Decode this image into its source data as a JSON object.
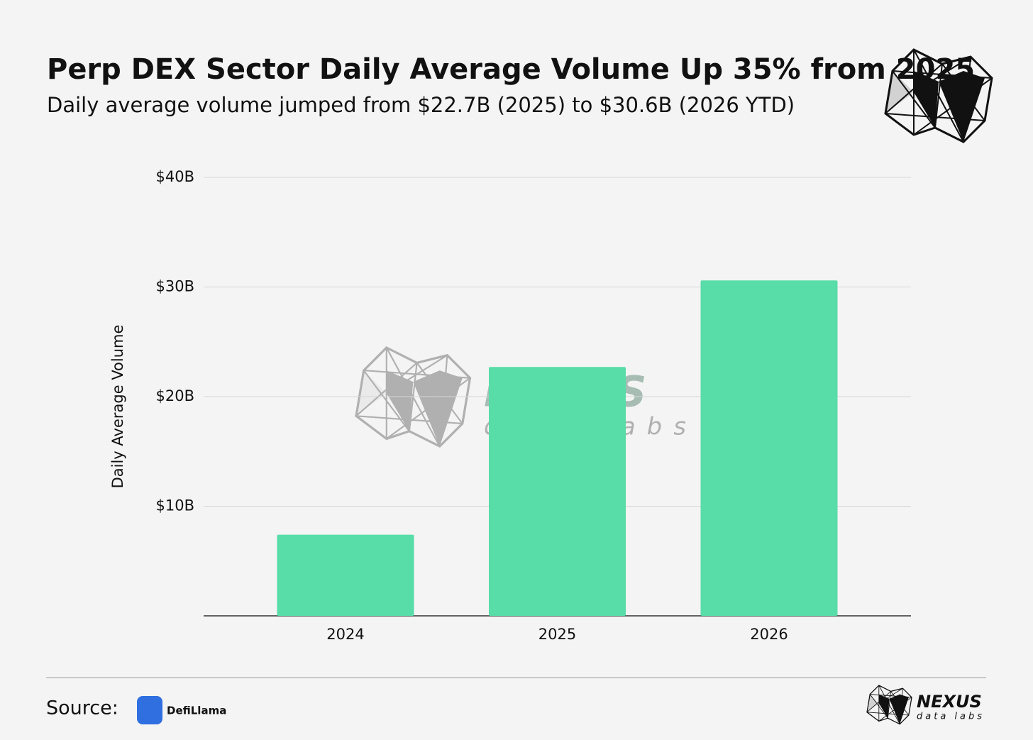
{
  "chart_data": {
    "type": "bar",
    "title": "Perp DEX Sector Daily Average Volume Up 35% from 2025",
    "subtitle": "Daily average volume jumped from $22.7B (2025) to $30.6B (2026 YTD)",
    "y_label": "Daily Average Volume",
    "categories": [
      "2024",
      "2025",
      "2026"
    ],
    "values": [
      7.4,
      22.7,
      30.6
    ],
    "color": "#58dca8",
    "ylim": [
      0,
      40
    ],
    "yticks": [
      {
        "value": 10,
        "label": "$10B"
      },
      {
        "value": 20,
        "label": "$20B"
      },
      {
        "value": 30,
        "label": "$30B"
      },
      {
        "value": 40,
        "label": "$40B"
      }
    ],
    "grid": true
  },
  "footer": {
    "source_label": "Source:",
    "source_name": "DefiLlama"
  },
  "brand": {
    "name": "NEXUS",
    "tagline": "data labs"
  }
}
